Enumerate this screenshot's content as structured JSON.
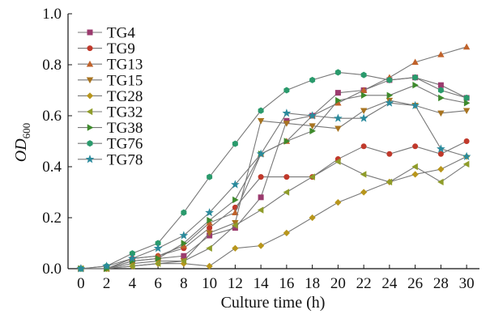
{
  "chart_data": {
    "type": "line",
    "title": "",
    "xlabel": "Culture time (h)",
    "ylabel": {
      "main": "OD",
      "subscript": "600"
    },
    "xlim": [
      -1,
      31
    ],
    "ylim": [
      0,
      1.0
    ],
    "xticks": [
      0,
      2,
      4,
      6,
      8,
      10,
      12,
      14,
      16,
      18,
      20,
      22,
      24,
      26,
      28,
      30
    ],
    "yticks": [
      0.0,
      0.2,
      0.4,
      0.6,
      0.8,
      1.0
    ],
    "ytick_labels": [
      "0.0",
      "0.2",
      "0.4",
      "0.6",
      "0.8",
      "1.0"
    ],
    "grid": false,
    "legend_position": "top-left",
    "x": [
      0,
      2,
      4,
      6,
      8,
      10,
      12,
      14,
      16,
      18,
      20,
      22,
      24,
      26,
      28,
      30
    ],
    "series": [
      {
        "name": "TG4",
        "color": "#9b3b6e",
        "marker": "square",
        "values": [
          0.0,
          0.0,
          0.03,
          0.04,
          0.05,
          0.13,
          0.16,
          0.28,
          0.58,
          0.6,
          0.69,
          0.7,
          0.74,
          0.75,
          0.72,
          0.67
        ]
      },
      {
        "name": "TG9",
        "color": "#c0392b",
        "marker": "circle",
        "values": [
          0.0,
          0.0,
          0.04,
          0.05,
          0.08,
          0.16,
          0.24,
          0.36,
          0.36,
          0.36,
          0.43,
          0.48,
          0.45,
          0.48,
          0.45,
          0.5
        ]
      },
      {
        "name": "TG13",
        "color": "#c0622a",
        "marker": "triangle-up",
        "values": [
          0.0,
          0.0,
          0.04,
          0.05,
          0.09,
          0.18,
          0.22,
          0.45,
          0.5,
          0.6,
          0.65,
          0.7,
          0.75,
          0.81,
          0.84,
          0.87
        ]
      },
      {
        "name": "TG15",
        "color": "#a87420",
        "marker": "triangle-down",
        "values": [
          0.0,
          0.0,
          0.02,
          0.03,
          0.03,
          0.14,
          0.18,
          0.58,
          0.57,
          0.56,
          0.55,
          0.62,
          0.66,
          0.64,
          0.61,
          0.62
        ]
      },
      {
        "name": "TG28",
        "color": "#b8961c",
        "marker": "diamond",
        "values": [
          0.0,
          0.0,
          0.01,
          0.02,
          0.02,
          0.01,
          0.08,
          0.09,
          0.14,
          0.2,
          0.26,
          0.3,
          0.34,
          0.37,
          0.39,
          0.44
        ]
      },
      {
        "name": "TG32",
        "color": "#8f9c2a",
        "marker": "triangle-left",
        "values": [
          0.0,
          0.0,
          0.01,
          0.02,
          0.03,
          0.08,
          0.17,
          0.23,
          0.3,
          0.36,
          0.42,
          0.37,
          0.34,
          0.4,
          0.34,
          0.41
        ]
      },
      {
        "name": "TG38",
        "color": "#3e8a2c",
        "marker": "triangle-right",
        "values": [
          0.0,
          0.0,
          0.03,
          0.04,
          0.1,
          0.19,
          0.27,
          0.45,
          0.5,
          0.54,
          0.66,
          0.68,
          0.68,
          0.72,
          0.67,
          0.65
        ]
      },
      {
        "name": "TG76",
        "color": "#2a9a6c",
        "marker": "hexagon",
        "values": [
          0.0,
          0.01,
          0.06,
          0.1,
          0.22,
          0.36,
          0.49,
          0.62,
          0.7,
          0.74,
          0.77,
          0.76,
          0.74,
          0.75,
          0.7,
          0.67
        ]
      },
      {
        "name": "TG78",
        "color": "#2a8a9c",
        "marker": "star",
        "values": [
          0.0,
          0.01,
          0.04,
          0.08,
          0.13,
          0.22,
          0.33,
          0.45,
          0.61,
          0.6,
          0.59,
          0.59,
          0.65,
          0.64,
          0.47,
          0.44
        ]
      }
    ]
  }
}
